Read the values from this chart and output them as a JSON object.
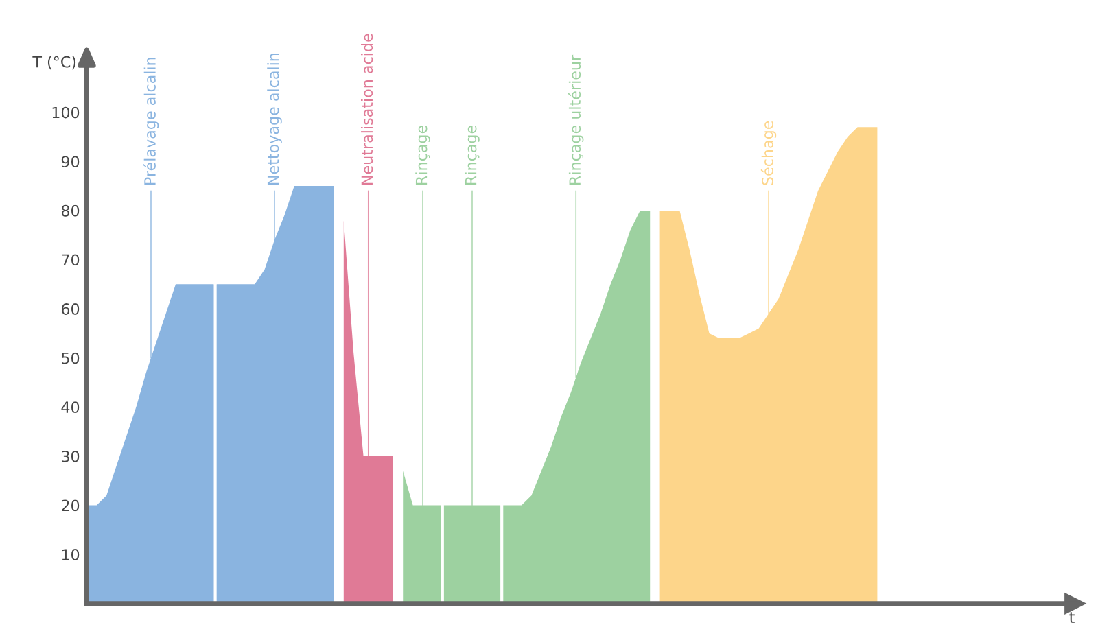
{
  "chart_data": {
    "type": "area",
    "ylabel": "T (°C)",
    "xlabel": "t",
    "ylim": [
      0,
      110
    ],
    "yticks": [
      10,
      20,
      30,
      40,
      50,
      60,
      70,
      80,
      90,
      100
    ],
    "tick_labels": "y",
    "grid": false,
    "legend": false,
    "categories": [
      null,
      null,
      null,
      null,
      null,
      null,
      null,
      null,
      null,
      null,
      null,
      null,
      null,
      null,
      null,
      null,
      null,
      null,
      null,
      null,
      null,
      null,
      null,
      null,
      null,
      null,
      null,
      null,
      null,
      null,
      null,
      null,
      null,
      null,
      null,
      null,
      null,
      null,
      null,
      null,
      null,
      null,
      null,
      null,
      null,
      null,
      null,
      null,
      null,
      null,
      null,
      null,
      null,
      null,
      null,
      null,
      null,
      null,
      null,
      null,
      null,
      null,
      null,
      null,
      null,
      null,
      null,
      null,
      null,
      null,
      null,
      null,
      null,
      null,
      null,
      null,
      null,
      null,
      null,
      null,
      null,
      null,
      null,
      null,
      null,
      null,
      null,
      null,
      null,
      null,
      null,
      null,
      null,
      null,
      null,
      null,
      null,
      null,
      null,
      null,
      null
    ],
    "series": [
      {
        "name": "Prélavage alcalin",
        "color": "#8ab4e0",
        "values": [
          20,
          20,
          22,
          28,
          34,
          40,
          47,
          53,
          59,
          65,
          65,
          65,
          65,
          65,
          null,
          null,
          null,
          null,
          null,
          null,
          null,
          null,
          null,
          null,
          null,
          null,
          null,
          null,
          null,
          null,
          null,
          null,
          null,
          null,
          null,
          null,
          null,
          null,
          null,
          null,
          null,
          null,
          null,
          null,
          null,
          null,
          null,
          null,
          null,
          null,
          null,
          null,
          null,
          null,
          null,
          null,
          null,
          null,
          null,
          null,
          null,
          null,
          null,
          null,
          null,
          null,
          null,
          null,
          null,
          null,
          null,
          null,
          null,
          null,
          null,
          null,
          null,
          null,
          null,
          null,
          null,
          null,
          null,
          null,
          null,
          null,
          null,
          null,
          null,
          null,
          null,
          null,
          null,
          null,
          null,
          null,
          null,
          null,
          null,
          null,
          null
        ]
      },
      {
        "name": "Nettoyage alcalin",
        "color": "#8ab4e0",
        "values": [
          null,
          null,
          null,
          null,
          null,
          null,
          null,
          null,
          null,
          null,
          null,
          null,
          null,
          65,
          65,
          65,
          65,
          65,
          68,
          74,
          79,
          85,
          85,
          85,
          85,
          85,
          null,
          null,
          null,
          null,
          null,
          null,
          null,
          null,
          null,
          null,
          null,
          null,
          null,
          null,
          null,
          null,
          null,
          null,
          null,
          null,
          null,
          null,
          null,
          null,
          null,
          null,
          null,
          null,
          null,
          null,
          null,
          null,
          null,
          null,
          null,
          null,
          null,
          null,
          null,
          null,
          null,
          null,
          null,
          null,
          null,
          null,
          null,
          null,
          null,
          null,
          null,
          null,
          null,
          null,
          null,
          null,
          null,
          null,
          null,
          null,
          null,
          null,
          null,
          null,
          null,
          null,
          null,
          null,
          null,
          null,
          null,
          null,
          null,
          null,
          null
        ]
      },
      {
        "name": "Neutralisation acide",
        "color": "#e07a96",
        "values": [
          null,
          null,
          null,
          null,
          null,
          null,
          null,
          null,
          null,
          null,
          null,
          null,
          null,
          null,
          null,
          null,
          null,
          null,
          null,
          null,
          null,
          null,
          null,
          null,
          null,
          null,
          78,
          51,
          30,
          30,
          30,
          30,
          null,
          null,
          null,
          null,
          null,
          null,
          null,
          null,
          null,
          null,
          null,
          null,
          null,
          null,
          null,
          null,
          null,
          null,
          null,
          null,
          null,
          null,
          null,
          null,
          null,
          null,
          null,
          null,
          null,
          null,
          null,
          null,
          null,
          null,
          null,
          null,
          null,
          null,
          null,
          null,
          null,
          null,
          null,
          null,
          null,
          null,
          null,
          null,
          null,
          null,
          null,
          null,
          null,
          null,
          null,
          null,
          null,
          null,
          null,
          null,
          null,
          null,
          null,
          null,
          null,
          null,
          null,
          null,
          null
        ]
      },
      {
        "name": "Rinçage",
        "color": "#9dd1a0",
        "values": [
          null,
          null,
          null,
          null,
          null,
          null,
          null,
          null,
          null,
          null,
          null,
          null,
          null,
          null,
          null,
          null,
          null,
          null,
          null,
          null,
          null,
          null,
          null,
          null,
          null,
          null,
          null,
          null,
          null,
          null,
          null,
          null,
          27,
          20,
          20,
          20,
          20,
          null,
          null,
          null,
          null,
          null,
          null,
          null,
          null,
          null,
          null,
          null,
          null,
          null,
          null,
          null,
          null,
          null,
          null,
          null,
          null,
          null,
          null,
          null,
          null,
          null,
          null,
          null,
          null,
          null,
          null,
          null,
          null,
          null,
          null,
          null,
          null,
          null,
          null,
          null,
          null,
          null,
          null,
          null,
          null,
          null,
          null,
          null,
          null,
          null,
          null,
          null,
          null,
          null,
          null,
          null,
          null,
          null,
          null,
          null,
          null,
          null,
          null,
          null,
          null
        ]
      },
      {
        "name": "Rinçage",
        "color": "#9dd1a0",
        "values": [
          null,
          null,
          null,
          null,
          null,
          null,
          null,
          null,
          null,
          null,
          null,
          null,
          null,
          null,
          null,
          null,
          null,
          null,
          null,
          null,
          null,
          null,
          null,
          null,
          null,
          null,
          null,
          null,
          null,
          null,
          null,
          null,
          null,
          null,
          null,
          null,
          20,
          20,
          20,
          20,
          20,
          20,
          20,
          null,
          null,
          null,
          null,
          null,
          null,
          null,
          null,
          null,
          null,
          null,
          null,
          null,
          null,
          null,
          null,
          null,
          null,
          null,
          null,
          null,
          null,
          null,
          null,
          null,
          null,
          null,
          null,
          null,
          null,
          null,
          null,
          null,
          null,
          null,
          null,
          null,
          null,
          null,
          null,
          null,
          null,
          null,
          null,
          null,
          null,
          null,
          null,
          null,
          null,
          null,
          null,
          null,
          null,
          null,
          null,
          null,
          null
        ]
      },
      {
        "name": "Rinçage ultérieur",
        "color": "#9dd1a0",
        "values": [
          null,
          null,
          null,
          null,
          null,
          null,
          null,
          null,
          null,
          null,
          null,
          null,
          null,
          null,
          null,
          null,
          null,
          null,
          null,
          null,
          null,
          null,
          null,
          null,
          null,
          null,
          null,
          null,
          null,
          null,
          null,
          null,
          null,
          null,
          null,
          null,
          null,
          null,
          null,
          null,
          null,
          null,
          20,
          20,
          20,
          22,
          27,
          32,
          38,
          43,
          49,
          54,
          59,
          65,
          70,
          76,
          80,
          80,
          null,
          null,
          null,
          null,
          null,
          null,
          null,
          null,
          null,
          null,
          null,
          null,
          null,
          null,
          null,
          null,
          null,
          null,
          null,
          null,
          null,
          null,
          null,
          null,
          null,
          null,
          null,
          null,
          null,
          null,
          null,
          null,
          null,
          null,
          null,
          null,
          null,
          null,
          null,
          null,
          null,
          null,
          null
        ]
      },
      {
        "name": "Séchage",
        "color": "#fdd58a",
        "values": [
          null,
          null,
          null,
          null,
          null,
          null,
          null,
          null,
          null,
          null,
          null,
          null,
          null,
          null,
          null,
          null,
          null,
          null,
          null,
          null,
          null,
          null,
          null,
          null,
          null,
          null,
          null,
          null,
          null,
          null,
          null,
          null,
          null,
          null,
          null,
          null,
          null,
          null,
          null,
          null,
          null,
          null,
          null,
          null,
          null,
          null,
          null,
          null,
          null,
          null,
          null,
          null,
          null,
          null,
          null,
          null,
          null,
          null,
          80,
          80,
          80,
          72,
          63,
          55,
          54,
          54,
          54,
          55,
          56,
          59,
          62,
          67,
          72,
          78,
          84,
          88,
          92,
          95,
          97,
          97,
          97,
          null,
          null,
          null,
          null,
          null,
          null,
          null,
          null,
          null,
          null,
          null,
          null,
          null,
          null,
          null,
          null,
          null,
          null,
          null,
          null
        ]
      }
    ]
  }
}
